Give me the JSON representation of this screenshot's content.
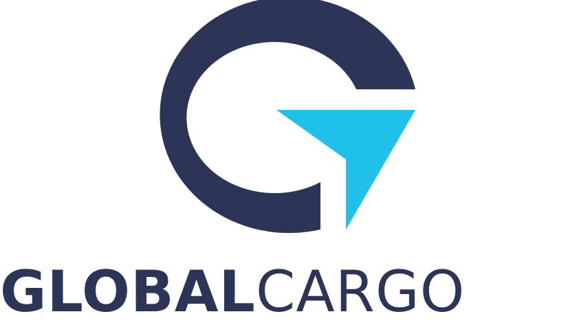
{
  "brand": {
    "word_bold": "GLOBAL",
    "word_light": "CARGO",
    "colors": {
      "navy": "#2c3558",
      "cyan": "#1fc0ea",
      "background": "#ffffff"
    },
    "icons": [
      "g-monogram-icon",
      "arrow-pointer-icon"
    ]
  }
}
